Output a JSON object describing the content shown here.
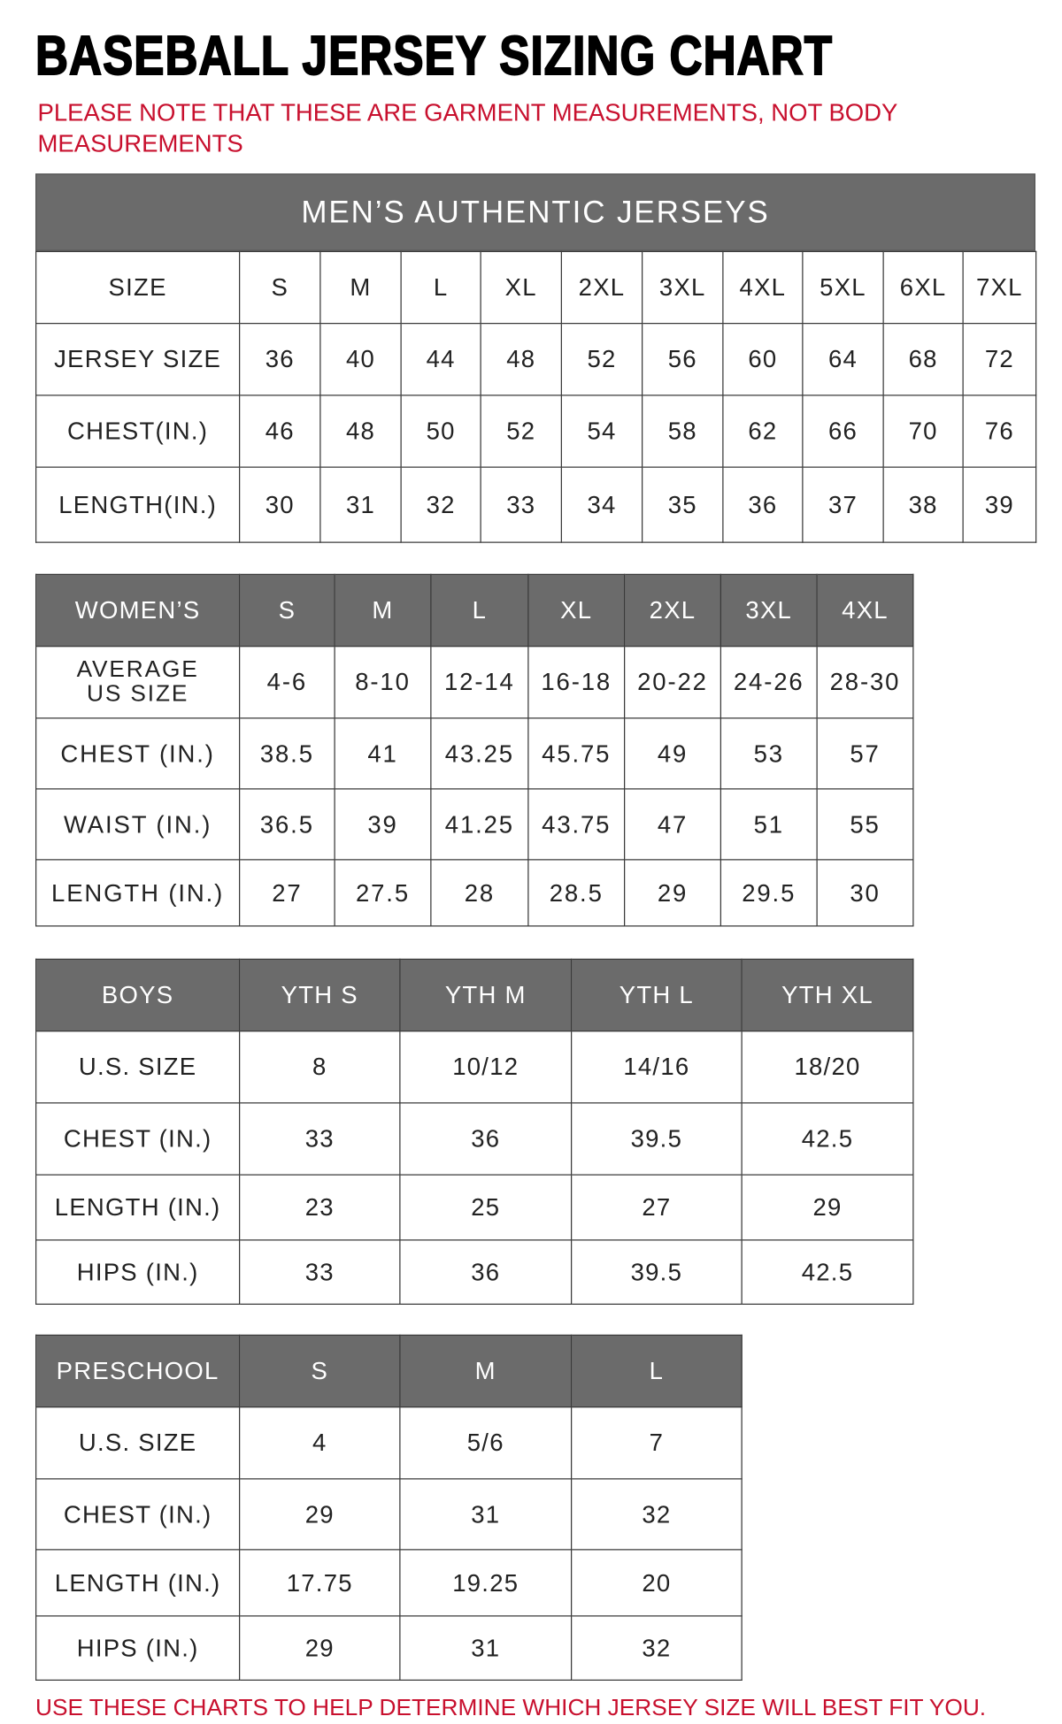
{
  "title": "BASEBALL JERSEY SIZING CHART",
  "note": "PLEASE NOTE THAT THESE ARE GARMENT MEASUREMENTS, NOT BODY MEASUREMENTS",
  "footer": "USE THESE CHARTS TO HELP DETERMINE WHICH JERSEY SIZE WILL BEST FIT YOU.",
  "colors": {
    "header_bg": "#6b6b6b",
    "note_red": "#c8102e"
  },
  "chart_data": [
    {
      "type": "table",
      "title": "MEN’S AUTHENTIC JERSEYS",
      "header": [
        "SIZE",
        "S",
        "M",
        "L",
        "XL",
        "2XL",
        "3XL",
        "4XL",
        "5XL",
        "6XL",
        "7XL"
      ],
      "rows": [
        [
          "JERSEY SIZE",
          "36",
          "40",
          "44",
          "48",
          "52",
          "56",
          "60",
          "64",
          "68",
          "72"
        ],
        [
          "CHEST(IN.)",
          "46",
          "48",
          "50",
          "52",
          "54",
          "58",
          "62",
          "66",
          "70",
          "76"
        ],
        [
          "LENGTH(IN.)",
          "30",
          "31",
          "32",
          "33",
          "34",
          "35",
          "36",
          "37",
          "38",
          "39"
        ]
      ]
    },
    {
      "type": "table",
      "header": [
        "WOMEN’S",
        "S",
        "M",
        "L",
        "XL",
        "2XL",
        "3XL",
        "4XL"
      ],
      "rows": [
        [
          "AVERAGE US SIZE",
          "4-6",
          "8-10",
          "12-14",
          "16-18",
          "20-22",
          "24-26",
          "28-30"
        ],
        [
          "CHEST (IN.)",
          "38.5",
          "41",
          "43.25",
          "45.75",
          "49",
          "53",
          "57"
        ],
        [
          "WAIST (IN.)",
          "36.5",
          "39",
          "41.25",
          "43.75",
          "47",
          "51",
          "55"
        ],
        [
          "LENGTH (IN.)",
          "27",
          "27.5",
          "28",
          "28.5",
          "29",
          "29.5",
          "30"
        ]
      ]
    },
    {
      "type": "table",
      "header": [
        "BOYS",
        "YTH S",
        "YTH M",
        "YTH L",
        "YTH XL"
      ],
      "rows": [
        [
          "U.S. SIZE",
          "8",
          "10/12",
          "14/16",
          "18/20"
        ],
        [
          "CHEST (IN.)",
          "33",
          "36",
          "39.5",
          "42.5"
        ],
        [
          "LENGTH (IN.)",
          "23",
          "25",
          "27",
          "29"
        ],
        [
          "HIPS (IN.)",
          "33",
          "36",
          "39.5",
          "42.5"
        ]
      ]
    },
    {
      "type": "table",
      "header": [
        "PRESCHOOL",
        "S",
        "M",
        "L"
      ],
      "rows": [
        [
          "U.S. SIZE",
          "4",
          "5/6",
          "7"
        ],
        [
          "CHEST (IN.)",
          "29",
          "31",
          "32"
        ],
        [
          "LENGTH (IN.)",
          "17.75",
          "19.25",
          "20"
        ],
        [
          "HIPS (IN.)",
          "29",
          "31",
          "32"
        ]
      ]
    }
  ]
}
